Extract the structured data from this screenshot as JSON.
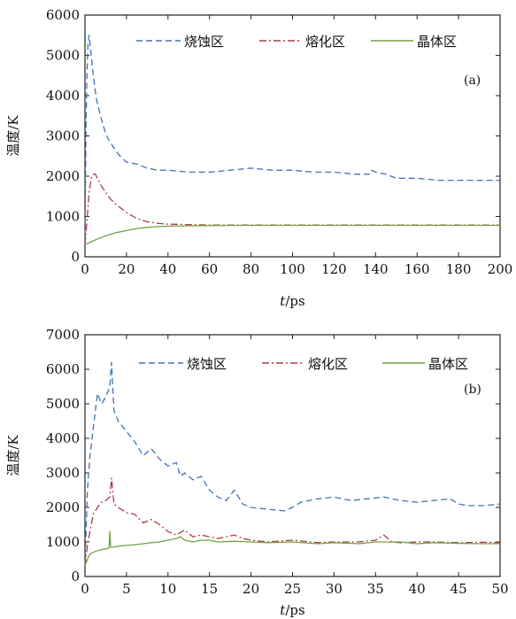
{
  "colors": {
    "ablation": "#4472b4",
    "melt": "#b03a48",
    "crystal": "#71a443",
    "axis": "#222222"
  },
  "chart_data": [
    {
      "type": "line",
      "panel": "(a)",
      "xlabel_italic": "t",
      "xlabel_unit": "/ps",
      "ylabel": "温度/K",
      "xlim": [
        0,
        200
      ],
      "ylim": [
        0,
        6000
      ],
      "xticks": [
        0,
        20,
        40,
        60,
        80,
        100,
        120,
        140,
        160,
        180,
        200
      ],
      "yticks": [
        0,
        1000,
        2000,
        3000,
        4000,
        5000,
        6000
      ],
      "legend_position": "top",
      "series": [
        {
          "name": "烧蚀区",
          "style": "dashed",
          "color": "#4472b4",
          "x": [
            0,
            0.5,
            1,
            1.5,
            2,
            3,
            4,
            5,
            6,
            8,
            10,
            12,
            14,
            16,
            18,
            20,
            25,
            30,
            35,
            40,
            50,
            60,
            70,
            80,
            90,
            100,
            110,
            120,
            130,
            137,
            138,
            140,
            145,
            150,
            160,
            170,
            180,
            190,
            200
          ],
          "y": [
            300,
            3200,
            4600,
            5300,
            5500,
            5000,
            4500,
            4100,
            3800,
            3400,
            3050,
            2850,
            2700,
            2550,
            2450,
            2350,
            2300,
            2200,
            2150,
            2150,
            2100,
            2100,
            2150,
            2200,
            2150,
            2150,
            2100,
            2100,
            2050,
            2050,
            2150,
            2100,
            2050,
            1950,
            1950,
            1900,
            1900,
            1900,
            1900
          ]
        },
        {
          "name": "熔化区",
          "style": "dash-dot",
          "color": "#b03a48",
          "x": [
            0,
            1,
            2,
            3,
            4,
            5,
            6,
            8,
            10,
            12,
            15,
            20,
            25,
            30,
            35,
            40,
            50,
            60,
            80,
            100,
            120,
            140,
            160,
            180,
            200
          ],
          "y": [
            300,
            900,
            1600,
            1950,
            2050,
            2050,
            1950,
            1750,
            1600,
            1450,
            1300,
            1100,
            950,
            870,
            830,
            810,
            800,
            790,
            790,
            790,
            790,
            790,
            790,
            790,
            790
          ]
        },
        {
          "name": "晶体区",
          "style": "solid",
          "color": "#71a443",
          "x": [
            0,
            2,
            5,
            10,
            15,
            20,
            25,
            30,
            35,
            40,
            50,
            60,
            80,
            100,
            120,
            140,
            160,
            180,
            200
          ],
          "y": [
            300,
            350,
            420,
            520,
            600,
            650,
            700,
            730,
            750,
            760,
            770,
            775,
            780,
            780,
            780,
            780,
            780,
            780,
            780
          ]
        }
      ]
    },
    {
      "type": "line",
      "panel": "(b)",
      "xlabel_italic": "t",
      "xlabel_unit": "/ps",
      "ylabel": "温度/K",
      "xlim": [
        0,
        50
      ],
      "ylim": [
        0,
        7000
      ],
      "xticks": [
        0,
        5,
        10,
        15,
        20,
        25,
        30,
        35,
        40,
        45,
        50
      ],
      "yticks": [
        0,
        1000,
        2000,
        3000,
        4000,
        5000,
        6000,
        7000
      ],
      "legend_position": "top",
      "series": [
        {
          "name": "烧蚀区",
          "style": "dashed",
          "color": "#4472b4",
          "x": [
            0,
            0.3,
            0.6,
            1,
            1.5,
            2,
            2.5,
            3,
            3.2,
            3.5,
            4,
            5,
            6,
            7,
            8,
            9,
            10,
            11,
            11.5,
            12,
            13,
            14,
            15,
            16,
            17,
            18,
            19,
            20,
            22,
            24,
            25,
            26,
            28,
            30,
            32,
            34,
            36,
            38,
            40,
            42,
            44,
            45,
            46,
            48,
            50
          ],
          "y": [
            300,
            2500,
            3500,
            4300,
            5300,
            5000,
            5200,
            5500,
            6200,
            4800,
            4500,
            4200,
            3900,
            3500,
            3700,
            3400,
            3200,
            3300,
            2900,
            3000,
            2800,
            2900,
            2500,
            2300,
            2200,
            2500,
            2100,
            2000,
            1950,
            1900,
            2000,
            2150,
            2250,
            2300,
            2200,
            2250,
            2300,
            2200,
            2150,
            2200,
            2250,
            2100,
            2050,
            2050,
            2100
          ]
        },
        {
          "name": "熔化区",
          "style": "dash-dot",
          "color": "#b03a48",
          "x": [
            0,
            0.3,
            0.6,
            1,
            1.5,
            2,
            2.5,
            3,
            3.2,
            3.5,
            4,
            5,
            6,
            7,
            8,
            9,
            10,
            11,
            12,
            13,
            14,
            15,
            16,
            17,
            18,
            19,
            20,
            22,
            25,
            28,
            30,
            33,
            35,
            36,
            37,
            38,
            40,
            42,
            45,
            48,
            50
          ],
          "y": [
            300,
            900,
            1300,
            1800,
            2000,
            2150,
            2200,
            2300,
            2850,
            2100,
            2000,
            1850,
            1800,
            1550,
            1650,
            1500,
            1300,
            1200,
            1350,
            1150,
            1200,
            1150,
            1100,
            1150,
            1200,
            1100,
            1050,
            1000,
            1050,
            980,
            1000,
            1000,
            1050,
            1200,
            1000,
            980,
            1000,
            1000,
            980,
            990,
            980
          ]
        },
        {
          "name": "晶体区",
          "style": "solid",
          "color": "#71a443",
          "x": [
            0,
            0.3,
            0.6,
            1,
            1.5,
            2,
            2.5,
            2.9,
            3,
            3.1,
            3.5,
            4,
            5,
            6,
            7,
            8,
            9,
            10,
            11,
            11.5,
            12,
            13,
            14,
            15,
            16,
            18,
            20,
            22,
            25,
            28,
            30,
            33,
            35,
            38,
            40,
            42,
            45,
            48,
            50
          ],
          "y": [
            300,
            500,
            650,
            700,
            750,
            780,
            800,
            820,
            1300,
            850,
            850,
            880,
            900,
            920,
            950,
            980,
            1000,
            1050,
            1100,
            1150,
            1050,
            1000,
            1050,
            1050,
            1000,
            1020,
            1000,
            980,
            1000,
            950,
            980,
            950,
            1000,
            1000,
            950,
            980,
            960,
            950,
            950
          ]
        }
      ]
    }
  ]
}
